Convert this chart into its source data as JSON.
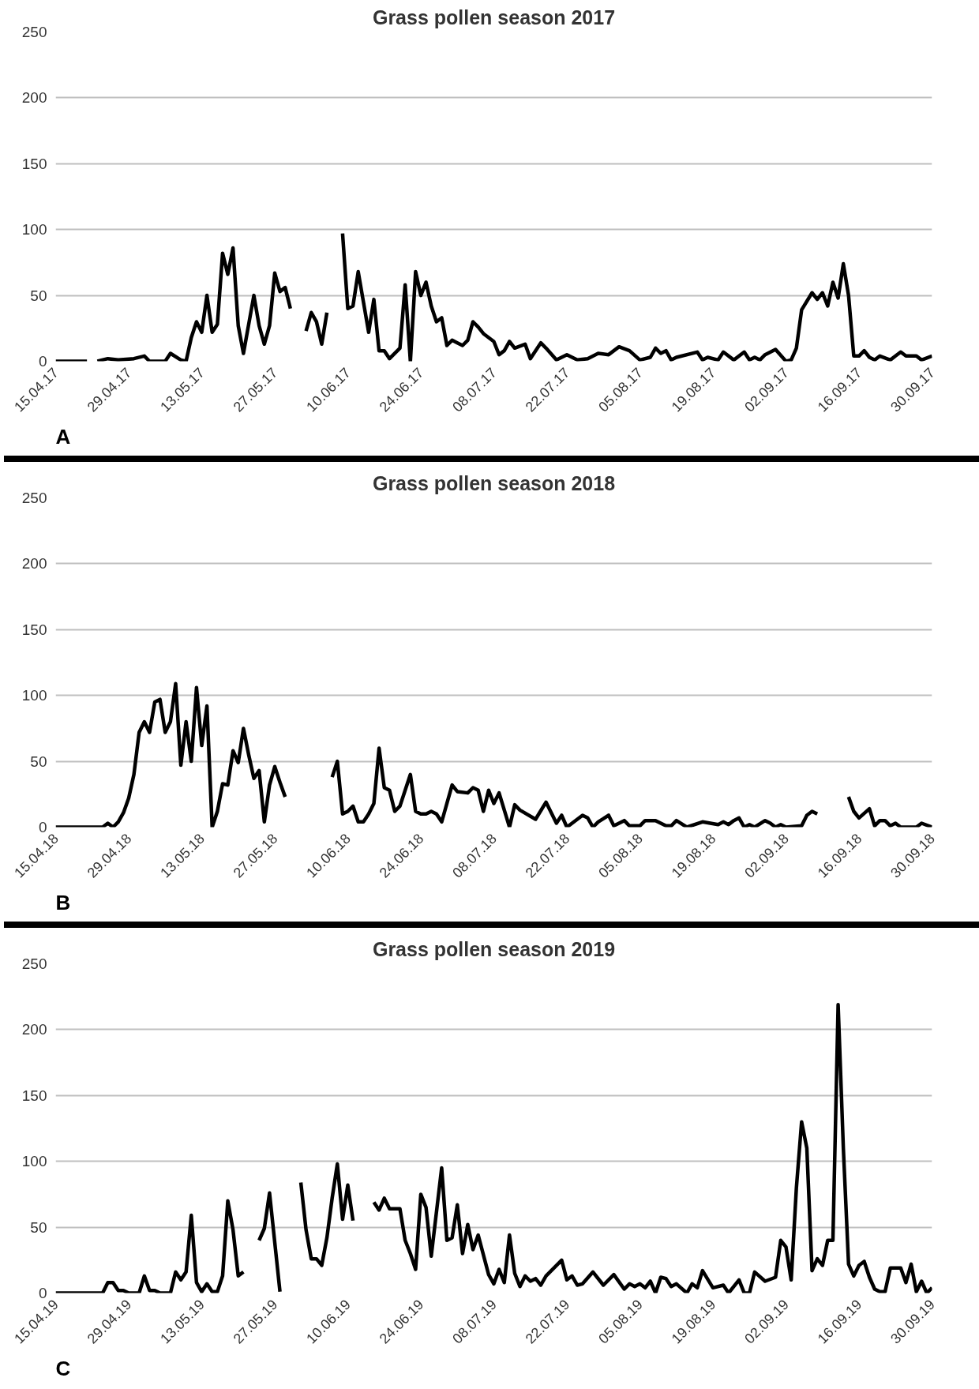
{
  "chart_data": [
    {
      "type": "line",
      "title": "Grass pollen season 2017",
      "annotations": [
        "A"
      ],
      "color": "#000000",
      "line_style": "solid",
      "grid": "y",
      "xlim": [
        "2017-04-15",
        "2017-09-30"
      ],
      "ylim": [
        0,
        250
      ],
      "yticks": [
        0,
        50,
        100,
        150,
        200,
        250
      ],
      "xticks": [
        {
          "value": "2017-04-15",
          "label": "15.04.17"
        },
        {
          "value": "2017-04-29",
          "label": "29.04.17"
        },
        {
          "value": "2017-05-13",
          "label": "13.05.17"
        },
        {
          "value": "2017-05-27",
          "label": "27.05.17"
        },
        {
          "value": "2017-06-10",
          "label": "10.06.17"
        },
        {
          "value": "2017-06-24",
          "label": "24.06.17"
        },
        {
          "value": "2017-07-08",
          "label": "08.07.17"
        },
        {
          "value": "2017-07-22",
          "label": "22.07.17"
        },
        {
          "value": "2017-08-05",
          "label": "05.08.17"
        },
        {
          "value": "2017-08-19",
          "label": "19.08.17"
        },
        {
          "value": "2017-09-02",
          "label": "02.09.17"
        },
        {
          "value": "2017-09-16",
          "label": "16.09.17"
        },
        {
          "value": "2017-09-30",
          "label": "30.09.17"
        }
      ],
      "x": [
        "2017-04-15",
        "2017-04-21",
        "2017-04-22",
        "2017-04-23",
        "2017-04-25",
        "2017-04-27",
        "2017-04-30",
        "2017-05-02",
        "2017-05-03",
        "2017-05-06",
        "2017-05-07",
        "2017-05-09",
        "2017-05-10",
        "2017-05-11",
        "2017-05-12",
        "2017-05-13",
        "2017-05-14",
        "2017-05-15",
        "2017-05-16",
        "2017-05-17",
        "2017-05-18",
        "2017-05-19",
        "2017-05-20",
        "2017-05-21",
        "2017-05-22",
        "2017-05-23",
        "2017-05-24",
        "2017-05-25",
        "2017-05-26",
        "2017-05-27",
        "2017-05-28",
        "2017-05-29",
        "2017-05-30",
        "2017-05-31",
        "2017-06-02",
        "2017-06-03",
        "2017-06-04",
        "2017-06-05",
        "2017-06-06",
        "2017-06-07",
        "2017-06-09",
        "2017-06-10",
        "2017-06-11",
        "2017-06-12",
        "2017-06-13",
        "2017-06-14",
        "2017-06-15",
        "2017-06-16",
        "2017-06-17",
        "2017-06-18",
        "2017-06-20",
        "2017-06-21",
        "2017-06-22",
        "2017-06-23",
        "2017-06-24",
        "2017-06-25",
        "2017-06-26",
        "2017-06-27",
        "2017-06-28",
        "2017-06-29",
        "2017-06-30",
        "2017-07-01",
        "2017-07-02",
        "2017-07-03",
        "2017-07-04",
        "2017-07-05",
        "2017-07-06",
        "2017-07-08",
        "2017-07-09",
        "2017-07-10",
        "2017-07-11",
        "2017-07-12",
        "2017-07-14",
        "2017-07-15",
        "2017-07-17",
        "2017-07-18",
        "2017-07-20",
        "2017-07-22",
        "2017-07-24",
        "2017-07-26",
        "2017-07-28",
        "2017-07-30",
        "2017-08-01",
        "2017-08-03",
        "2017-08-05",
        "2017-08-07",
        "2017-08-08",
        "2017-08-09",
        "2017-08-10",
        "2017-08-11",
        "2017-08-12",
        "2017-08-16",
        "2017-08-17",
        "2017-08-18",
        "2017-08-20",
        "2017-08-21",
        "2017-08-23",
        "2017-08-25",
        "2017-08-26",
        "2017-08-27",
        "2017-08-28",
        "2017-08-29",
        "2017-08-31",
        "2017-09-02",
        "2017-09-03",
        "2017-09-04",
        "2017-09-05",
        "2017-09-07",
        "2017-09-08",
        "2017-09-09",
        "2017-09-10",
        "2017-09-11",
        "2017-09-12",
        "2017-09-13",
        "2017-09-14",
        "2017-09-15",
        "2017-09-16",
        "2017-09-17",
        "2017-09-18",
        "2017-09-19",
        "2017-09-20",
        "2017-09-22",
        "2017-09-23",
        "2017-09-24",
        "2017-09-25",
        "2017-09-27",
        "2017-09-28",
        "2017-09-30"
      ],
      "values": [
        0,
        0,
        null,
        0,
        2,
        1,
        2,
        4,
        0,
        0,
        6,
        1,
        0,
        18,
        30,
        22,
        50,
        22,
        28,
        82,
        66,
        86,
        27,
        6,
        28,
        50,
        27,
        13,
        27,
        67,
        53,
        56,
        40,
        null,
        23,
        37,
        30,
        13,
        37,
        null,
        97,
        40,
        42,
        68,
        45,
        22,
        47,
        8,
        8,
        2,
        10,
        58,
        0,
        68,
        50,
        60,
        42,
        30,
        33,
        12,
        16,
        14,
        12,
        16,
        30,
        26,
        21,
        15,
        5,
        8,
        15,
        10,
        13,
        2,
        14,
        10,
        1,
        5,
        1,
        2,
        6,
        5,
        11,
        8,
        1,
        3,
        10,
        6,
        8,
        1,
        3,
        7,
        1,
        3,
        1,
        7,
        1,
        7,
        1,
        3,
        1,
        5,
        9,
        0,
        1,
        10,
        39,
        52,
        47,
        52,
        42,
        60,
        48,
        74,
        50,
        4,
        4,
        8,
        3,
        1,
        4,
        1,
        4,
        7,
        4,
        4,
        1,
        4
      ]
    },
    {
      "type": "line",
      "title": "Grass pollen season 2018",
      "annotations": [
        "B"
      ],
      "color": "#000000",
      "line_style": "solid",
      "grid": "y",
      "xlim": [
        "2018-04-15",
        "2018-09-30"
      ],
      "ylim": [
        0,
        250
      ],
      "yticks": [
        0,
        50,
        100,
        150,
        200,
        250
      ],
      "xticks": [
        {
          "value": "2018-04-15",
          "label": "15.04.18"
        },
        {
          "value": "2018-04-29",
          "label": "29.04.18"
        },
        {
          "value": "2018-05-13",
          "label": "13.05.18"
        },
        {
          "value": "2018-05-27",
          "label": "27.05.18"
        },
        {
          "value": "2018-06-10",
          "label": "10.06.18"
        },
        {
          "value": "2018-06-24",
          "label": "24.06.18"
        },
        {
          "value": "2018-07-08",
          "label": "08.07.18"
        },
        {
          "value": "2018-07-22",
          "label": "22.07.18"
        },
        {
          "value": "2018-08-05",
          "label": "05.08.18"
        },
        {
          "value": "2018-08-19",
          "label": "19.08.18"
        },
        {
          "value": "2018-09-02",
          "label": "02.09.18"
        },
        {
          "value": "2018-09-16",
          "label": "16.09.18"
        },
        {
          "value": "2018-09-30",
          "label": "30.09.18"
        }
      ],
      "x": [
        "2018-04-15",
        "2018-04-24",
        "2018-04-25",
        "2018-04-26",
        "2018-04-27",
        "2018-04-28",
        "2018-04-29",
        "2018-04-30",
        "2018-05-01",
        "2018-05-02",
        "2018-05-03",
        "2018-05-04",
        "2018-05-05",
        "2018-05-06",
        "2018-05-07",
        "2018-05-08",
        "2018-05-09",
        "2018-05-10",
        "2018-05-11",
        "2018-05-12",
        "2018-05-13",
        "2018-05-14",
        "2018-05-15",
        "2018-05-16",
        "2018-05-17",
        "2018-05-18",
        "2018-05-19",
        "2018-05-20",
        "2018-05-21",
        "2018-05-22",
        "2018-05-23",
        "2018-05-24",
        "2018-05-25",
        "2018-05-26",
        "2018-05-27",
        "2018-05-28",
        "2018-05-29",
        "2018-05-30",
        "2018-06-07",
        "2018-06-08",
        "2018-06-09",
        "2018-06-10",
        "2018-06-11",
        "2018-06-12",
        "2018-06-13",
        "2018-06-14",
        "2018-06-15",
        "2018-06-16",
        "2018-06-17",
        "2018-06-18",
        "2018-06-19",
        "2018-06-20",
        "2018-06-22",
        "2018-06-23",
        "2018-06-24",
        "2018-06-25",
        "2018-06-26",
        "2018-06-27",
        "2018-06-28",
        "2018-06-30",
        "2018-07-01",
        "2018-07-03",
        "2018-07-04",
        "2018-07-05",
        "2018-07-06",
        "2018-07-07",
        "2018-07-08",
        "2018-07-09",
        "2018-07-11",
        "2018-07-12",
        "2018-07-13",
        "2018-07-16",
        "2018-07-18",
        "2018-07-20",
        "2018-07-21",
        "2018-07-22",
        "2018-07-25",
        "2018-07-26",
        "2018-07-27",
        "2018-07-28",
        "2018-07-30",
        "2018-07-31",
        "2018-08-02",
        "2018-08-03",
        "2018-08-05",
        "2018-08-06",
        "2018-08-08",
        "2018-08-10",
        "2018-08-11",
        "2018-08-12",
        "2018-08-14",
        "2018-08-17",
        "2018-08-20",
        "2018-08-21",
        "2018-08-22",
        "2018-08-23",
        "2018-08-24",
        "2018-08-25",
        "2018-08-26",
        "2018-08-27",
        "2018-08-29",
        "2018-08-30",
        "2018-08-31",
        "2018-09-01",
        "2018-09-02",
        "2018-09-05",
        "2018-09-06",
        "2018-09-07",
        "2018-09-08",
        "2018-09-09",
        "2018-09-14",
        "2018-09-15",
        "2018-09-16",
        "2018-09-18",
        "2018-09-19",
        "2018-09-20",
        "2018-09-21",
        "2018-09-22",
        "2018-09-23",
        "2018-09-24",
        "2018-09-27",
        "2018-09-28",
        "2018-09-30"
      ],
      "values": [
        0,
        0,
        3,
        0,
        4,
        11,
        22,
        40,
        72,
        80,
        72,
        95,
        97,
        72,
        80,
        109,
        47,
        80,
        50,
        106,
        62,
        92,
        0,
        12,
        33,
        32,
        58,
        49,
        75,
        55,
        37,
        43,
        4,
        32,
        46,
        34,
        23,
        null,
        38,
        50,
        10,
        12,
        16,
        4,
        4,
        10,
        18,
        60,
        30,
        28,
        12,
        16,
        40,
        12,
        10,
        10,
        12,
        10,
        4,
        32,
        27,
        26,
        30,
        28,
        12,
        28,
        18,
        26,
        0,
        17,
        13,
        6,
        19,
        3,
        9,
        0,
        9,
        7,
        0,
        4,
        9,
        1,
        5,
        1,
        1,
        5,
        5,
        1,
        1,
        5,
        0,
        4,
        2,
        4,
        2,
        5,
        7,
        0,
        2,
        0,
        5,
        3,
        0,
        2,
        0,
        1,
        9,
        12,
        10,
        null,
        23,
        12,
        7,
        14,
        1,
        5,
        5,
        1,
        3,
        0,
        0,
        3,
        0
      ]
    },
    {
      "type": "line",
      "title": "Grass pollen season 2019",
      "annotations": [
        "C"
      ],
      "color": "#000000",
      "line_style": "solid",
      "grid": "y",
      "xlim": [
        "2019-04-15",
        "2019-09-30"
      ],
      "ylim": [
        0,
        250
      ],
      "yticks": [
        0,
        50,
        100,
        150,
        200,
        250
      ],
      "xticks": [
        {
          "value": "2019-04-15",
          "label": "15.04.19"
        },
        {
          "value": "2019-04-29",
          "label": "29.04.19"
        },
        {
          "value": "2019-05-13",
          "label": "13.05.19"
        },
        {
          "value": "2019-05-27",
          "label": "27.05.19"
        },
        {
          "value": "2019-06-10",
          "label": "10.06.19"
        },
        {
          "value": "2019-06-24",
          "label": "24.06.19"
        },
        {
          "value": "2019-07-08",
          "label": "08.07.19"
        },
        {
          "value": "2019-07-22",
          "label": "22.07.19"
        },
        {
          "value": "2019-08-05",
          "label": "05.08.19"
        },
        {
          "value": "2019-08-19",
          "label": "19.08.19"
        },
        {
          "value": "2019-09-02",
          "label": "02.09.19"
        },
        {
          "value": "2019-09-16",
          "label": "16.09.19"
        },
        {
          "value": "2019-09-30",
          "label": "30.09.19"
        }
      ],
      "x": [
        "2019-04-15",
        "2019-04-24",
        "2019-04-25",
        "2019-04-26",
        "2019-04-27",
        "2019-04-28",
        "2019-04-29",
        "2019-05-01",
        "2019-05-02",
        "2019-05-03",
        "2019-05-04",
        "2019-05-05",
        "2019-05-07",
        "2019-05-08",
        "2019-05-09",
        "2019-05-10",
        "2019-05-11",
        "2019-05-12",
        "2019-05-13",
        "2019-05-14",
        "2019-05-15",
        "2019-05-16",
        "2019-05-17",
        "2019-05-18",
        "2019-05-19",
        "2019-05-20",
        "2019-05-21",
        "2019-05-22",
        "2019-05-24",
        "2019-05-25",
        "2019-05-26",
        "2019-05-28",
        "2019-05-29",
        "2019-06-01",
        "2019-06-02",
        "2019-06-03",
        "2019-06-04",
        "2019-06-05",
        "2019-06-06",
        "2019-06-07",
        "2019-06-08",
        "2019-06-09",
        "2019-06-10",
        "2019-06-11",
        "2019-06-12",
        "2019-06-15",
        "2019-06-16",
        "2019-06-17",
        "2019-06-18",
        "2019-06-20",
        "2019-06-21",
        "2019-06-22",
        "2019-06-23",
        "2019-06-24",
        "2019-06-25",
        "2019-06-26",
        "2019-06-28",
        "2019-06-29",
        "2019-06-30",
        "2019-07-01",
        "2019-07-02",
        "2019-07-03",
        "2019-07-04",
        "2019-07-05",
        "2019-07-07",
        "2019-07-08",
        "2019-07-09",
        "2019-07-10",
        "2019-07-11",
        "2019-07-12",
        "2019-07-13",
        "2019-07-14",
        "2019-07-15",
        "2019-07-16",
        "2019-07-17",
        "2019-07-18",
        "2019-07-21",
        "2019-07-22",
        "2019-07-23",
        "2019-07-24",
        "2019-07-25",
        "2019-07-27",
        "2019-07-29",
        "2019-07-31",
        "2019-08-02",
        "2019-08-03",
        "2019-08-04",
        "2019-08-05",
        "2019-08-06",
        "2019-08-07",
        "2019-08-08",
        "2019-08-09",
        "2019-08-10",
        "2019-08-11",
        "2019-08-12",
        "2019-08-14",
        "2019-08-15",
        "2019-08-16",
        "2019-08-17",
        "2019-08-19",
        "2019-08-21",
        "2019-08-22",
        "2019-08-24",
        "2019-08-25",
        "2019-08-26",
        "2019-08-27",
        "2019-08-29",
        "2019-08-31",
        "2019-09-01",
        "2019-09-02",
        "2019-09-03",
        "2019-09-04",
        "2019-09-05",
        "2019-09-06",
        "2019-09-07",
        "2019-09-08",
        "2019-09-09",
        "2019-09-10",
        "2019-09-11",
        "2019-09-12",
        "2019-09-13",
        "2019-09-14",
        "2019-09-15",
        "2019-09-16",
        "2019-09-17",
        "2019-09-18",
        "2019-09-19",
        "2019-09-20",
        "2019-09-21",
        "2019-09-22",
        "2019-09-24",
        "2019-09-25",
        "2019-09-26",
        "2019-09-27",
        "2019-09-28",
        "2019-09-29",
        "2019-09-30"
      ],
      "values": [
        0,
        0,
        8,
        8,
        2,
        2,
        0,
        0,
        13,
        2,
        2,
        0,
        0,
        16,
        10,
        16,
        59,
        8,
        1,
        7,
        1,
        1,
        13,
        70,
        48,
        13,
        16,
        null,
        40,
        49,
        76,
        1,
        null,
        84,
        48,
        26,
        26,
        21,
        42,
        72,
        98,
        56,
        82,
        55,
        null,
        69,
        63,
        72,
        64,
        64,
        40,
        30,
        18,
        75,
        65,
        28,
        95,
        40,
        42,
        67,
        30,
        52,
        33,
        44,
        14,
        7,
        18,
        8,
        44,
        15,
        5,
        13,
        9,
        11,
        6,
        13,
        25,
        10,
        13,
        6,
        7,
        16,
        6,
        14,
        3,
        7,
        5,
        7,
        4,
        9,
        0,
        12,
        11,
        5,
        7,
        0,
        7,
        4,
        17,
        4,
        6,
        0,
        10,
        0,
        0,
        16,
        9,
        12,
        40,
        35,
        10,
        80,
        130,
        110,
        17,
        26,
        21,
        40,
        40,
        219,
        110,
        22,
        13,
        21,
        24,
        12,
        3,
        1,
        1,
        19,
        19,
        8,
        22,
        1,
        9,
        0,
        4
      ]
    }
  ]
}
